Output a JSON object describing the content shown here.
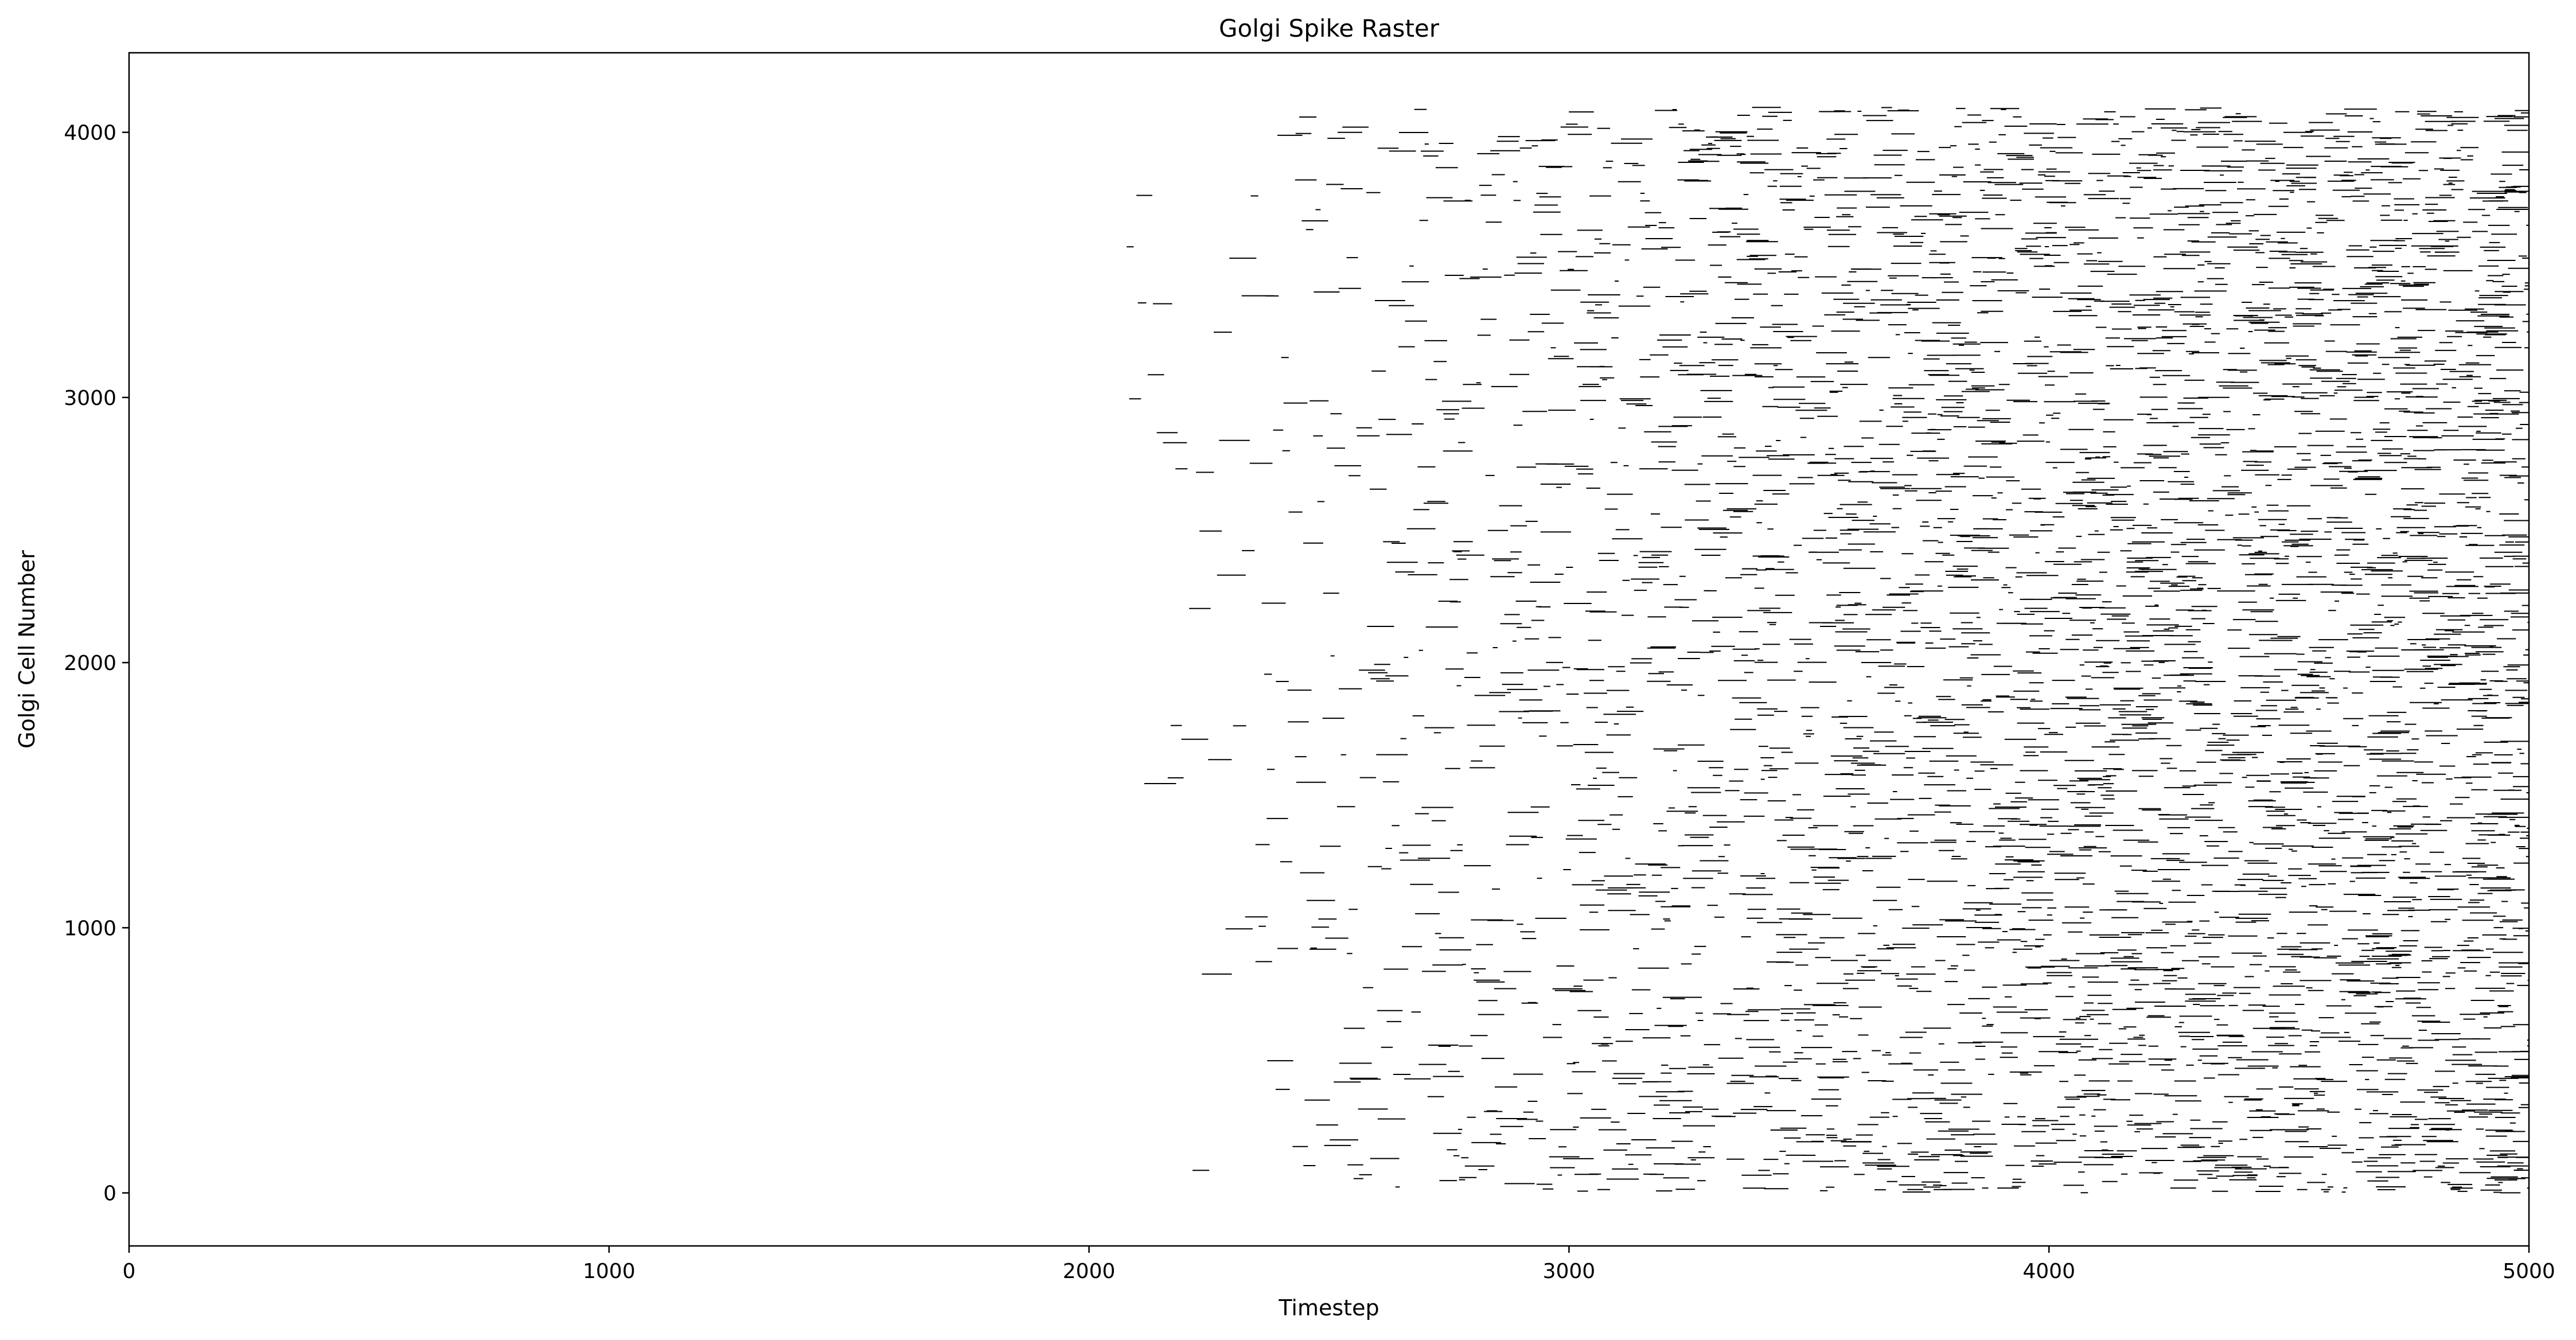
{
  "chart_data": {
    "type": "scatter",
    "title": "Golgi Spike Raster",
    "xlabel": "Timestep",
    "ylabel": "Golgi Cell Number",
    "xlim": [
      0,
      5000
    ],
    "ylim": [
      -200,
      4300
    ],
    "xticks": [
      0,
      1000,
      2000,
      3000,
      4000,
      5000
    ],
    "yticks": [
      0,
      1000,
      2000,
      3000,
      4000
    ],
    "xtick_labels": [
      "0",
      "1000",
      "2000",
      "3000",
      "4000",
      "5000"
    ],
    "ytick_labels": [
      "0",
      "1000",
      "2000",
      "3000",
      "4000"
    ],
    "grid": false,
    "legend": "none",
    "marker": "short horizontal line per spike",
    "marker_color": "#000000",
    "cells": {
      "min": 0,
      "max": 4095
    },
    "spike_onset_timestep": 1900,
    "firing_density": [
      {
        "timestep": 0,
        "relative_density": 0.0
      },
      {
        "timestep": 1900,
        "relative_density": 0.0
      },
      {
        "timestep": 2000,
        "relative_density": 0.01
      },
      {
        "timestep": 2300,
        "relative_density": 0.06
      },
      {
        "timestep": 2500,
        "relative_density": 0.15
      },
      {
        "timestep": 3000,
        "relative_density": 0.35
      },
      {
        "timestep": 3500,
        "relative_density": 0.6
      },
      {
        "timestep": 4000,
        "relative_density": 0.82
      },
      {
        "timestep": 4500,
        "relative_density": 0.95
      },
      {
        "timestep": 5000,
        "relative_density": 1.0
      }
    ]
  }
}
